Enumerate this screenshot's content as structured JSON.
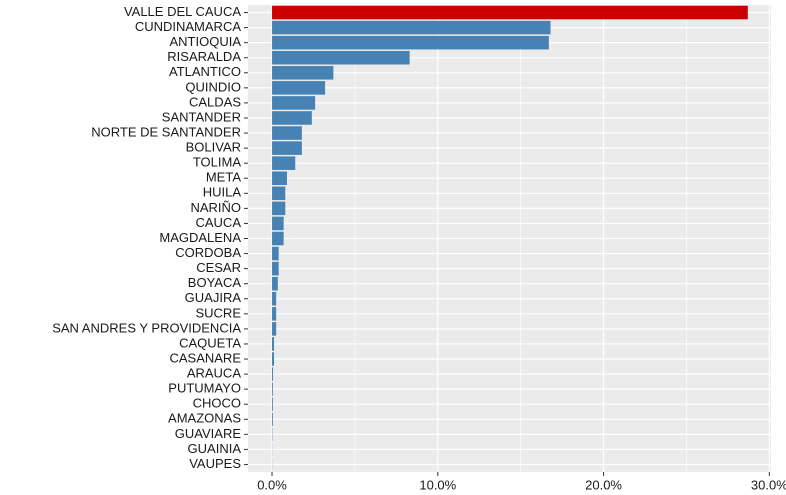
{
  "chart_data": {
    "type": "hbar",
    "categories": [
      "VALLE DEL CAUCA",
      "CUNDINAMARCA",
      "ANTIOQUIA",
      "RISARALDA",
      "ATLANTICO",
      "QUINDIO",
      "CALDAS",
      "SANTANDER",
      "NORTE DE SANTANDER",
      "BOLIVAR",
      "TOLIMA",
      "META",
      "HUILA",
      "NARIÑO",
      "CAUCA",
      "MAGDALENA",
      "CORDOBA",
      "CESAR",
      "BOYACA",
      "GUAJIRA",
      "SUCRE",
      "SAN ANDRES Y PROVIDENCIA",
      "CAQUETA",
      "CASANARE",
      "ARAUCA",
      "PUTUMAYO",
      "CHOCO",
      "AMAZONAS",
      "GUAVIARE",
      "GUAINIA",
      "VAUPES"
    ],
    "values": [
      28.7,
      16.8,
      16.7,
      8.3,
      3.7,
      3.2,
      2.6,
      2.4,
      1.8,
      1.8,
      1.4,
      0.9,
      0.8,
      0.8,
      0.7,
      0.7,
      0.4,
      0.4,
      0.35,
      0.25,
      0.25,
      0.25,
      0.12,
      0.12,
      0.06,
      0.05,
      0.05,
      0.05,
      0.02,
      0.01,
      0.01
    ],
    "colors": [
      "#cc0000",
      "#4682b4",
      "#4682b4",
      "#4682b4",
      "#4682b4",
      "#4682b4",
      "#4682b4",
      "#4682b4",
      "#4682b4",
      "#4682b4",
      "#4682b4",
      "#4682b4",
      "#4682b4",
      "#4682b4",
      "#4682b4",
      "#4682b4",
      "#4682b4",
      "#4682b4",
      "#4682b4",
      "#4682b4",
      "#4682b4",
      "#4682b4",
      "#4682b4",
      "#4682b4",
      "#4682b4",
      "#4682b4",
      "#4682b4",
      "#4682b4",
      "#4682b4",
      "#4682b4",
      "#4682b4"
    ],
    "xlim": [
      -1.45,
      30.1
    ],
    "xticks": [
      {
        "value": 0,
        "label": "0.0%"
      },
      {
        "value": 10,
        "label": "10.0%"
      },
      {
        "value": 20,
        "label": "20.0%"
      },
      {
        "value": 30,
        "label": "30.0%"
      }
    ],
    "grid": true,
    "minor_grid": true
  }
}
